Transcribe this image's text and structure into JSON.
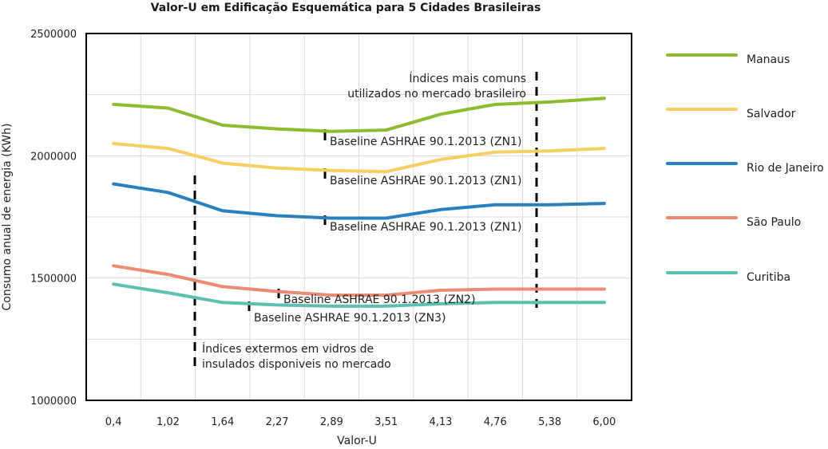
{
  "chart_data": {
    "type": "line",
    "title": "Valor-U em Edificação Esquemática para 5 Cidades Brasileiras",
    "xlabel": "Valor-U",
    "ylabel": "Consumo anual de energia (KWh)",
    "categories": [
      "0,4",
      "1,02",
      "1,64",
      "2,27",
      "2,89",
      "3,51",
      "4,13",
      "4,76",
      "5,38",
      "6,00"
    ],
    "y_ticks": [
      "1000000",
      "1500000",
      "2000000",
      "2500000"
    ],
    "ylim": [
      1000000,
      2500000
    ],
    "grid": "vertical and horizontal",
    "legend_position": "right",
    "series": [
      {
        "name": "Manaus",
        "color": "#8dbb2f",
        "values": [
          2210000,
          2195000,
          2125000,
          2110000,
          2100000,
          2105000,
          2170000,
          2210000,
          2220000,
          2235000
        ]
      },
      {
        "name": "Salvador",
        "color": "#f7ce62",
        "values": [
          2050000,
          2030000,
          1970000,
          1950000,
          1940000,
          1935000,
          1985000,
          2015000,
          2020000,
          2030000
        ]
      },
      {
        "name": "Rio de Janeiro",
        "color": "#2980c0",
        "values": [
          1885000,
          1850000,
          1775000,
          1755000,
          1745000,
          1745000,
          1780000,
          1800000,
          1800000,
          1805000
        ]
      },
      {
        "name": "São Paulo",
        "color": "#ec8a72",
        "values": [
          1550000,
          1515000,
          1465000,
          1445000,
          1430000,
          1430000,
          1450000,
          1455000,
          1455000,
          1455000
        ]
      },
      {
        "name": "Curitiba",
        "color": "#5cbfb0",
        "values": [
          1475000,
          1440000,
          1400000,
          1390000,
          1385000,
          1385000,
          1395000,
          1400000,
          1400000,
          1400000
        ]
      }
    ],
    "annotations": {
      "baseline_zn1": "Baseline ASHRAE 90.1.2013 (ZN1)",
      "baseline_zn2": "Baseline ASHRAE 90.1.2013 (ZN2)",
      "baseline_zn3": "Baseline ASHRAE 90.1.2013 (ZN3)",
      "extreme_line1": "Índices extermos em vidros de",
      "extreme_line2": "insulados disponiveis no mercado",
      "common_line1": "Índices mais comuns",
      "common_line2": "utilizados no mercado brasileiro"
    }
  }
}
